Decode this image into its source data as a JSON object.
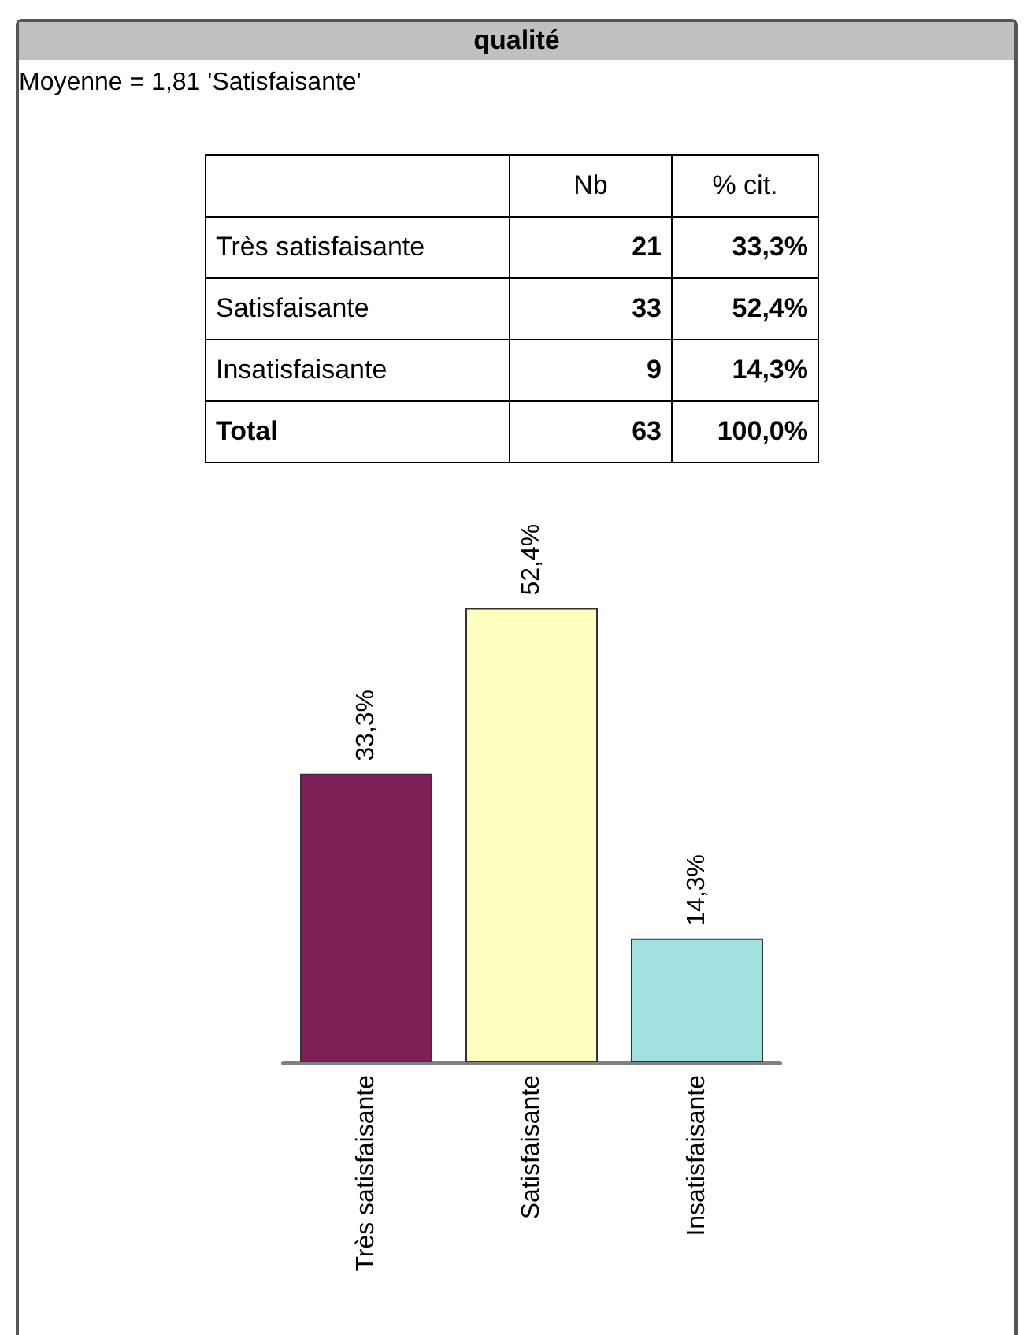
{
  "chart_data": [
    {
      "type": "other",
      "title": "qualité",
      "subtitle": "Moyenne = 1,81 'Satisfaisante'",
      "categories": [
        "Très satisfaisante",
        "Satisfaisante",
        "Insatisfaisante",
        "Total"
      ],
      "data_labels": true,
      "series": [
        {
          "name": "Nb",
          "values": [
            21,
            33,
            9,
            63
          ]
        },
        {
          "name": "% cit.",
          "values": [
            33.3,
            52.4,
            14.3,
            100
          ],
          "value_labels": [
            "33,3%",
            "52,4%",
            "14,3%",
            "100,0%"
          ]
        }
      ]
    },
    {
      "type": "bar",
      "categories": [
        "Très satisfaisante",
        "Satisfaisante",
        "Insatisfaisante"
      ],
      "values": [
        33.3,
        52.4,
        14.3
      ],
      "colors": [
        "#7f1f5a",
        "#ffffc0",
        "#a0e0e0"
      ],
      "value_labels": [
        "33,3%",
        "52,4%",
        "14,3%"
      ]
    }
  ]
}
